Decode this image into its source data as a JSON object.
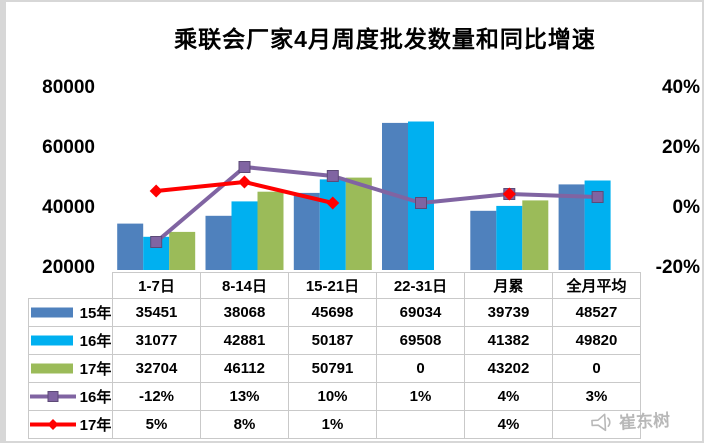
{
  "title": "乘联会厂家4月周度批发数量和同比增速",
  "watermark": {
    "icon": "megaphone-icon",
    "text": "崔东树"
  },
  "colors": {
    "bar_15": "#4F81BD",
    "bar_16": "#00B0F0",
    "bar_17": "#9BBB59",
    "line_16": "#8064A2",
    "line_16_edge": "#5d4a77",
    "line_17": "#FF0000",
    "table_border": "#c9c9c9"
  },
  "chart_data": {
    "type": "combo-bar-line",
    "title": "乘联会厂家4月周度批发数量和同比增速",
    "categories": [
      "1-7日",
      "8-14日",
      "15-21日",
      "22-31日",
      "月累",
      "全月平均"
    ],
    "bar_series": [
      {
        "name": "15年",
        "color_key": "bar_15",
        "values": [
          35451,
          38068,
          45698,
          69034,
          39739,
          48527
        ]
      },
      {
        "name": "16年",
        "color_key": "bar_16",
        "values": [
          31077,
          42881,
          50187,
          69508,
          41382,
          49820
        ]
      },
      {
        "name": "17年",
        "color_key": "bar_17",
        "values": [
          32704,
          46112,
          50791,
          0,
          43202,
          0
        ]
      }
    ],
    "line_series": [
      {
        "name": "16年",
        "color_key": "line_16",
        "marker": "square",
        "values_pct": [
          -12,
          13,
          10,
          1,
          4,
          3
        ]
      },
      {
        "name": "17年",
        "color_key": "line_17",
        "marker": "diamond",
        "values_pct": [
          5,
          8,
          1,
          null,
          4,
          null
        ]
      }
    ],
    "left_axis": {
      "min": 20000,
      "max": 80000,
      "ticks": [
        "80000",
        "60000",
        "40000",
        "20000"
      ]
    },
    "right_axis": {
      "min": -20,
      "max": 40,
      "ticks": [
        "40%",
        "20%",
        "0%",
        "-20%"
      ]
    },
    "grid": false,
    "legend_position": "table-left"
  },
  "table": {
    "header": [
      "1-7日",
      "8-14日",
      "15-21日",
      "22-31日",
      "月累",
      "全月平均"
    ],
    "rows": [
      {
        "legend": "15年",
        "swatch": "bar",
        "color_key": "bar_15",
        "cells": [
          "35451",
          "38068",
          "45698",
          "69034",
          "39739",
          "48527"
        ]
      },
      {
        "legend": "16年",
        "swatch": "bar",
        "color_key": "bar_16",
        "cells": [
          "31077",
          "42881",
          "50187",
          "69508",
          "41382",
          "49820"
        ]
      },
      {
        "legend": "17年",
        "swatch": "bar",
        "color_key": "bar_17",
        "cells": [
          "32704",
          "46112",
          "50791",
          "0",
          "43202",
          "0"
        ]
      },
      {
        "legend": "16年",
        "swatch": "line-square",
        "color_key": "line_16",
        "cells": [
          "-12%",
          "13%",
          "10%",
          "1%",
          "4%",
          "3%"
        ]
      },
      {
        "legend": "17年",
        "swatch": "line-diamond",
        "color_key": "line_17",
        "cells": [
          "5%",
          "8%",
          "1%",
          "",
          "4%",
          ""
        ]
      }
    ]
  }
}
